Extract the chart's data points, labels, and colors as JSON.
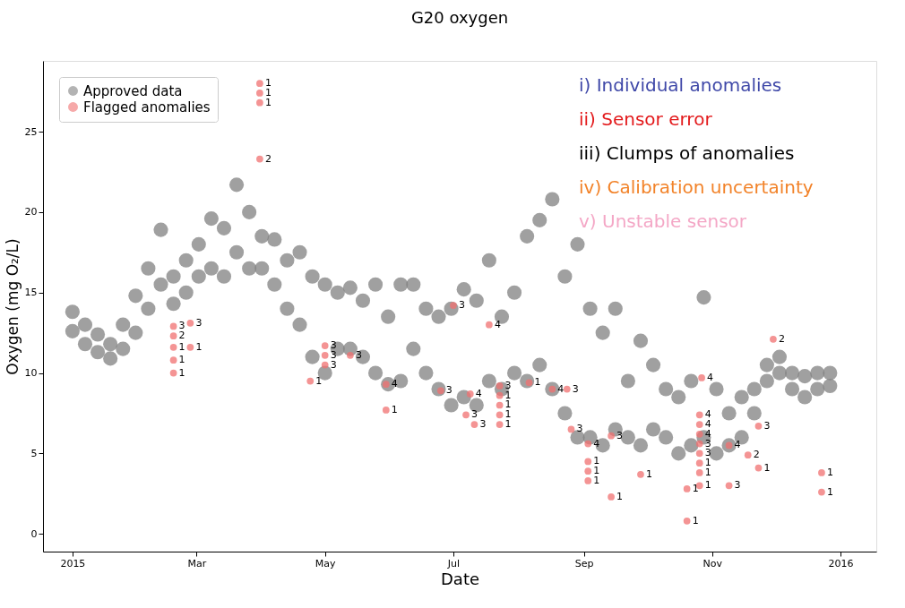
{
  "chart_data": {
    "type": "scatter",
    "title": "G20 oxygen",
    "xlabel": "Date",
    "ylabel": "Oxygen (mg O₂/L)",
    "xlim": [
      "2014-12-18",
      "2016-01-18"
    ],
    "ylim": [
      -1.1,
      29.4
    ],
    "xticks": [
      {
        "value": "2015-01-01",
        "label": "2015"
      },
      {
        "value": "2015-03-01",
        "label": "Mar"
      },
      {
        "value": "2015-05-01",
        "label": "May"
      },
      {
        "value": "2015-07-01",
        "label": "Jul"
      },
      {
        "value": "2015-09-01",
        "label": "Sep"
      },
      {
        "value": "2015-11-01",
        "label": "Nov"
      },
      {
        "value": "2016-01-01",
        "label": "2016"
      }
    ],
    "yticks": [
      0,
      5,
      10,
      15,
      20,
      25
    ],
    "grid": false,
    "legend": "top left",
    "marker": "circle",
    "annotations": [
      "i)  Individual anomalies",
      "ii)  Sensor error",
      "iii) Clumps of anomalies",
      "iv) Calibration uncertainty",
      "v)  Unstable sensor",
      {
        "text": "1",
        "x": "2015-03-31",
        "y": 28.0
      },
      {
        "text": "1",
        "x": "2015-03-31",
        "y": 27.4
      },
      {
        "text": "1",
        "x": "2015-03-31",
        "y": 26.8
      },
      {
        "text": "2",
        "x": "2015-03-31",
        "y": 23.3
      },
      {
        "text": "3",
        "x": "2015-02-18",
        "y": 12.9
      },
      {
        "text": "3",
        "x": "2015-02-26",
        "y": 13.1
      },
      {
        "text": "2",
        "x": "2015-02-18",
        "y": 12.3
      },
      {
        "text": "1",
        "x": "2015-02-18",
        "y": 11.6
      },
      {
        "text": "1",
        "x": "2015-02-26",
        "y": 11.6
      },
      {
        "text": "1",
        "x": "2015-02-18",
        "y": 10.8
      },
      {
        "text": "1",
        "x": "2015-02-18",
        "y": 10.0
      },
      {
        "text": "1",
        "x": "2015-04-24",
        "y": 9.5
      },
      {
        "text": "3",
        "x": "2015-05-01",
        "y": 11.7
      },
      {
        "text": "3",
        "x": "2015-05-01",
        "y": 11.1
      },
      {
        "text": "3",
        "x": "2015-05-01",
        "y": 10.5
      },
      {
        "text": "3",
        "x": "2015-05-13",
        "y": 11.1
      },
      {
        "text": "4",
        "x": "2015-05-30",
        "y": 9.3
      },
      {
        "text": "1",
        "x": "2015-05-30",
        "y": 7.7
      },
      {
        "text": "3",
        "x": "2015-06-25",
        "y": 8.9
      },
      {
        "text": "4",
        "x": "2015-07-09",
        "y": 8.7
      },
      {
        "text": "3",
        "x": "2015-07-07",
        "y": 7.4
      },
      {
        "text": "3",
        "x": "2015-07-11",
        "y": 6.8
      },
      {
        "text": "3",
        "x": "2015-07-01",
        "y": 14.2
      },
      {
        "text": "4",
        "x": "2015-07-18",
        "y": 13.0
      },
      {
        "text": "3",
        "x": "2015-07-23",
        "y": 9.2
      },
      {
        "text": "1",
        "x": "2015-07-23",
        "y": 8.6
      },
      {
        "text": "1",
        "x": "2015-07-23",
        "y": 8.0
      },
      {
        "text": "1",
        "x": "2015-07-23",
        "y": 7.4
      },
      {
        "text": "1",
        "x": "2015-07-23",
        "y": 6.8
      },
      {
        "text": "1",
        "x": "2015-08-06",
        "y": 9.4
      },
      {
        "text": "4",
        "x": "2015-08-17",
        "y": 9.0
      },
      {
        "text": "3",
        "x": "2015-08-24",
        "y": 9.0
      },
      {
        "text": "3",
        "x": "2015-08-26",
        "y": 6.5
      },
      {
        "text": "4",
        "x": "2015-09-03",
        "y": 5.6
      },
      {
        "text": "1",
        "x": "2015-09-03",
        "y": 4.5
      },
      {
        "text": "1",
        "x": "2015-09-03",
        "y": 3.9
      },
      {
        "text": "1",
        "x": "2015-09-03",
        "y": 3.3
      },
      {
        "text": "1",
        "x": "2015-09-14",
        "y": 2.3
      },
      {
        "text": "1",
        "x": "2015-09-28",
        "y": 3.7
      },
      {
        "text": "3",
        "x": "2015-09-14",
        "y": 6.1
      },
      {
        "text": "1",
        "x": "2015-10-20",
        "y": 2.8
      },
      {
        "text": "1",
        "x": "2015-10-20",
        "y": 0.8
      },
      {
        "text": "1",
        "x": "2015-10-26",
        "y": 3.0
      },
      {
        "text": "4",
        "x": "2015-10-26",
        "y": 7.4
      },
      {
        "text": "4",
        "x": "2015-10-26",
        "y": 6.8
      },
      {
        "text": "4",
        "x": "2015-10-26",
        "y": 6.2
      },
      {
        "text": "3",
        "x": "2015-10-26",
        "y": 5.6
      },
      {
        "text": "3",
        "x": "2015-10-26",
        "y": 5.0
      },
      {
        "text": "1",
        "x": "2015-10-26",
        "y": 4.4
      },
      {
        "text": "1",
        "x": "2015-10-26",
        "y": 3.8
      },
      {
        "text": "4",
        "x": "2015-10-27",
        "y": 9.7
      },
      {
        "text": "2",
        "x": "2015-11-30",
        "y": 12.1
      },
      {
        "text": "4",
        "x": "2015-11-09",
        "y": 5.5
      },
      {
        "text": "3",
        "x": "2015-11-09",
        "y": 3.0
      },
      {
        "text": "2",
        "x": "2015-11-18",
        "y": 4.9
      },
      {
        "text": "1",
        "x": "2015-11-23",
        "y": 4.1
      },
      {
        "text": "3",
        "x": "2015-11-23",
        "y": 6.7
      },
      {
        "text": "1",
        "x": "2015-12-23",
        "y": 3.8
      },
      {
        "text": "1",
        "x": "2015-12-23",
        "y": 2.6
      }
    ],
    "series": [
      {
        "name": "Approved data",
        "color": "#808080",
        "x": [
          "2015-01-01",
          "2015-01-01",
          "2015-01-07",
          "2015-01-07",
          "2015-01-13",
          "2015-01-13",
          "2015-01-19",
          "2015-01-19",
          "2015-01-25",
          "2015-01-25",
          "2015-01-31",
          "2015-01-31",
          "2015-02-06",
          "2015-02-06",
          "2015-02-12",
          "2015-02-12",
          "2015-02-18",
          "2015-02-18",
          "2015-02-24",
          "2015-02-24",
          "2015-03-02",
          "2015-03-02",
          "2015-03-08",
          "2015-03-08",
          "2015-03-14",
          "2015-03-14",
          "2015-03-20",
          "2015-03-20",
          "2015-03-26",
          "2015-03-26",
          "2015-04-01",
          "2015-04-01",
          "2015-04-07",
          "2015-04-07",
          "2015-04-13",
          "2015-04-13",
          "2015-04-19",
          "2015-04-19",
          "2015-04-25",
          "2015-04-25",
          "2015-05-01",
          "2015-05-01",
          "2015-05-07",
          "2015-05-07",
          "2015-05-13",
          "2015-05-13",
          "2015-05-19",
          "2015-05-19",
          "2015-05-25",
          "2015-05-25",
          "2015-05-31",
          "2015-05-31",
          "2015-06-06",
          "2015-06-06",
          "2015-06-12",
          "2015-06-12",
          "2015-06-18",
          "2015-06-18",
          "2015-06-24",
          "2015-06-24",
          "2015-06-30",
          "2015-06-30",
          "2015-07-06",
          "2015-07-06",
          "2015-07-12",
          "2015-07-12",
          "2015-07-18",
          "2015-07-18",
          "2015-07-24",
          "2015-07-24",
          "2015-07-30",
          "2015-07-30",
          "2015-08-05",
          "2015-08-05",
          "2015-08-11",
          "2015-08-11",
          "2015-08-17",
          "2015-08-17",
          "2015-08-23",
          "2015-08-23",
          "2015-08-29",
          "2015-08-29",
          "2015-09-04",
          "2015-09-04",
          "2015-09-10",
          "2015-09-10",
          "2015-09-16",
          "2015-09-16",
          "2015-09-22",
          "2015-09-22",
          "2015-09-28",
          "2015-09-28",
          "2015-10-04",
          "2015-10-04",
          "2015-10-10",
          "2015-10-10",
          "2015-10-16",
          "2015-10-16",
          "2015-10-22",
          "2015-10-22",
          "2015-10-28",
          "2015-10-28",
          "2015-11-03",
          "2015-11-03",
          "2015-11-09",
          "2015-11-09",
          "2015-11-15",
          "2015-11-15",
          "2015-11-21",
          "2015-11-21",
          "2015-11-27",
          "2015-11-27",
          "2015-12-03",
          "2015-12-03",
          "2015-12-09",
          "2015-12-09",
          "2015-12-15",
          "2015-12-15",
          "2015-12-21",
          "2015-12-21",
          "2015-12-27",
          "2015-12-27"
        ],
        "values": [
          12.6,
          13.8,
          11.8,
          13.0,
          11.3,
          12.4,
          10.9,
          11.8,
          11.5,
          13.0,
          12.5,
          14.8,
          14.0,
          16.5,
          15.5,
          18.9,
          14.3,
          16.0,
          15.0,
          17.0,
          16.0,
          18.0,
          16.5,
          19.6,
          16.0,
          19.0,
          17.5,
          21.7,
          16.5,
          20.0,
          16.5,
          18.5,
          15.5,
          18.3,
          14.0,
          17.0,
          13.0,
          17.5,
          11.0,
          16.0,
          10.0,
          15.5,
          11.5,
          15.0,
          11.5,
          15.3,
          11.0,
          14.5,
          10.0,
          15.5,
          9.3,
          13.5,
          9.5,
          15.5,
          11.5,
          15.5,
          10.0,
          14.0,
          9.0,
          13.5,
          8.0,
          14.0,
          8.5,
          15.2,
          8.0,
          14.5,
          9.5,
          17.0,
          9.0,
          13.5,
          10.0,
          15.0,
          9.5,
          18.5,
          10.5,
          19.5,
          9.0,
          20.8,
          7.5,
          16.0,
          6.0,
          18.0,
          6.0,
          14.0,
          5.5,
          12.5,
          6.5,
          14.0,
          6.0,
          9.5,
          5.5,
          12.0,
          6.5,
          10.5,
          6.0,
          9.0,
          5.0,
          8.5,
          5.5,
          9.5,
          6.0,
          14.7,
          5.0,
          9.0,
          5.5,
          7.5,
          6.0,
          8.5,
          7.5,
          9.0,
          9.5,
          10.5,
          10.0,
          11.0,
          9.0,
          10.0,
          8.5,
          9.8,
          9.0,
          10.0,
          9.2,
          10.0
        ]
      },
      {
        "name": "Flagged anomalies",
        "color": "#f07070",
        "x": [
          "2015-03-31",
          "2015-03-31",
          "2015-03-31",
          "2015-03-31",
          "2015-02-18",
          "2015-02-26",
          "2015-02-18",
          "2015-02-18",
          "2015-02-26",
          "2015-02-18",
          "2015-02-18",
          "2015-04-24",
          "2015-05-01",
          "2015-05-01",
          "2015-05-01",
          "2015-05-13",
          "2015-05-30",
          "2015-05-30",
          "2015-06-25",
          "2015-07-09",
          "2015-07-07",
          "2015-07-11",
          "2015-07-01",
          "2015-07-18",
          "2015-07-23",
          "2015-07-23",
          "2015-07-23",
          "2015-07-23",
          "2015-07-23",
          "2015-08-06",
          "2015-08-17",
          "2015-08-24",
          "2015-08-26",
          "2015-09-03",
          "2015-09-03",
          "2015-09-03",
          "2015-09-03",
          "2015-09-14",
          "2015-09-28",
          "2015-09-14",
          "2015-10-20",
          "2015-10-20",
          "2015-10-26",
          "2015-10-26",
          "2015-10-26",
          "2015-10-26",
          "2015-10-26",
          "2015-10-26",
          "2015-10-26",
          "2015-10-26",
          "2015-10-27",
          "2015-11-30",
          "2015-11-09",
          "2015-11-09",
          "2015-11-18",
          "2015-11-23",
          "2015-11-23",
          "2015-12-23",
          "2015-12-23"
        ],
        "values": [
          28.0,
          27.4,
          26.8,
          23.3,
          12.9,
          13.1,
          12.3,
          11.6,
          11.6,
          10.8,
          10.0,
          9.5,
          11.7,
          11.1,
          10.5,
          11.1,
          9.3,
          7.7,
          8.9,
          8.7,
          7.4,
          6.8,
          14.2,
          13.0,
          9.2,
          8.6,
          8.0,
          7.4,
          6.8,
          9.4,
          9.0,
          9.0,
          6.5,
          5.6,
          4.5,
          3.9,
          3.3,
          2.3,
          3.7,
          6.1,
          2.8,
          0.8,
          3.0,
          7.4,
          6.8,
          6.2,
          5.6,
          5.0,
          4.4,
          3.8,
          9.7,
          12.1,
          5.5,
          3.0,
          4.9,
          4.1,
          6.7,
          3.8,
          2.6
        ]
      }
    ]
  }
}
